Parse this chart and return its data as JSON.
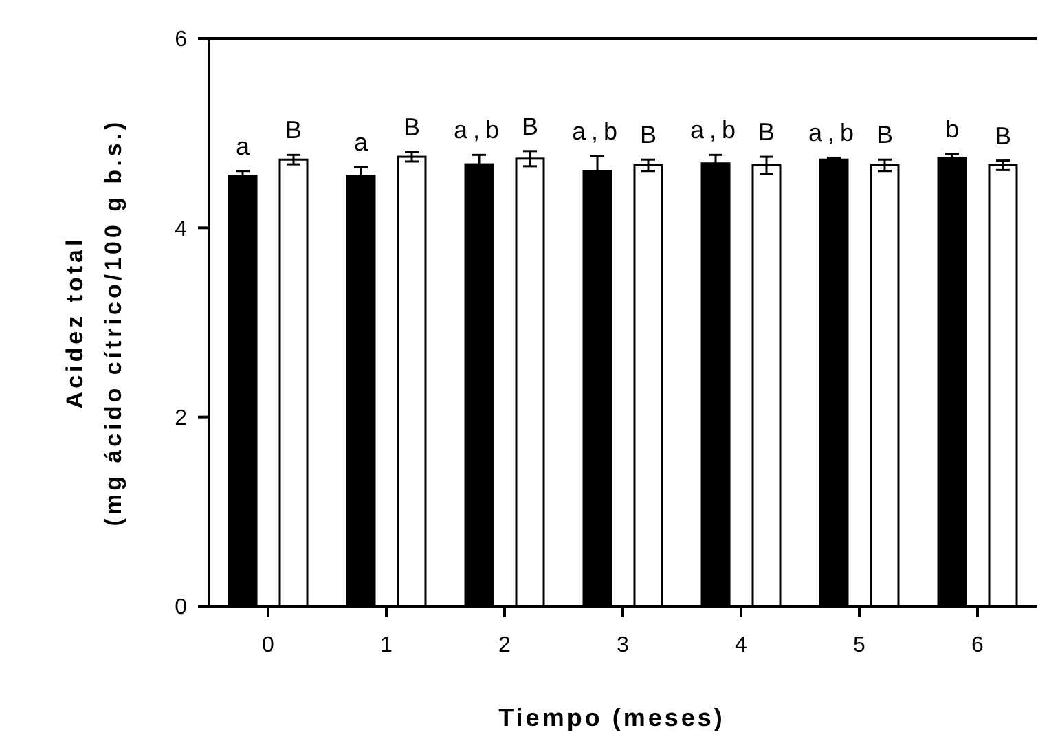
{
  "chart_data": {
    "type": "bar",
    "xlabel": "Tiempo (meses)",
    "ylabel": "Acidez total\n(mg ácido cítrico/100 g b.s.)",
    "categories": [
      "0",
      "1",
      "2",
      "3",
      "4",
      "5",
      "6"
    ],
    "ylim": [
      0,
      6
    ],
    "yticks": [
      0,
      2,
      4,
      6
    ],
    "grid": false,
    "series": [
      {
        "color": "#000000",
        "values": [
          4.55,
          4.55,
          4.67,
          4.6,
          4.68,
          4.72,
          4.74
        ],
        "errors": [
          0.05,
          0.09,
          0.1,
          0.16,
          0.09,
          0.02,
          0.04
        ],
        "value_labels": [
          "a",
          "a",
          "a,b",
          "a,b",
          "a,b",
          "a,b",
          "b"
        ]
      },
      {
        "color": "#ffffff",
        "values": [
          4.72,
          4.75,
          4.73,
          4.66,
          4.66,
          4.66,
          4.66
        ],
        "errors": [
          0.05,
          0.05,
          0.08,
          0.06,
          0.09,
          0.06,
          0.05
        ],
        "value_labels": [
          "B",
          "B",
          "B",
          "B",
          "B",
          "B",
          "B"
        ]
      }
    ]
  }
}
